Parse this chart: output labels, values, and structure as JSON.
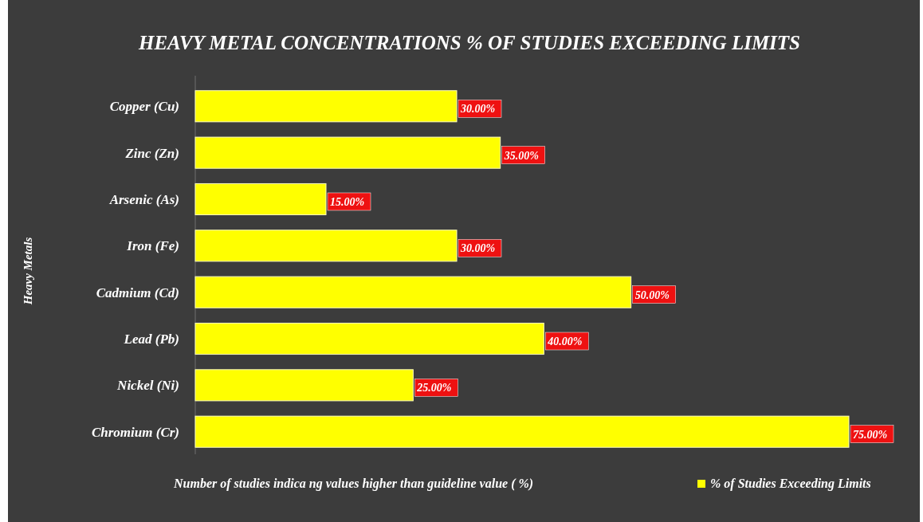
{
  "chart_data": {
    "type": "bar",
    "orientation": "horizontal",
    "title": "HEAVY METAL CONCENTRATIONS % OF STUDIES EXCEEDING LIMITS",
    "xlabel": "Number of studies indica ng values higher than guideline value ( %)",
    "ylabel": "Heavy Metals",
    "categories": [
      "Copper (Cu)",
      "Zinc (Zn)",
      "Arsenic (As)",
      "Iron (Fe)",
      "Cadmium (Cd)",
      "Lead (Pb)",
      "Nickel (Ni)",
      "Chromium (Cr)"
    ],
    "series": [
      {
        "name": "% of Studies Exceeding Limits",
        "color": "#ffff00",
        "values": [
          30,
          35,
          15,
          30,
          50,
          40,
          25,
          75
        ],
        "value_labels": [
          "30.00%",
          "35.00%",
          "15.00%",
          "30.00%",
          "50.00%",
          "40.00%",
          "25.00%",
          "75.00%"
        ]
      }
    ],
    "legend": "bottom right",
    "grid": false
  }
}
